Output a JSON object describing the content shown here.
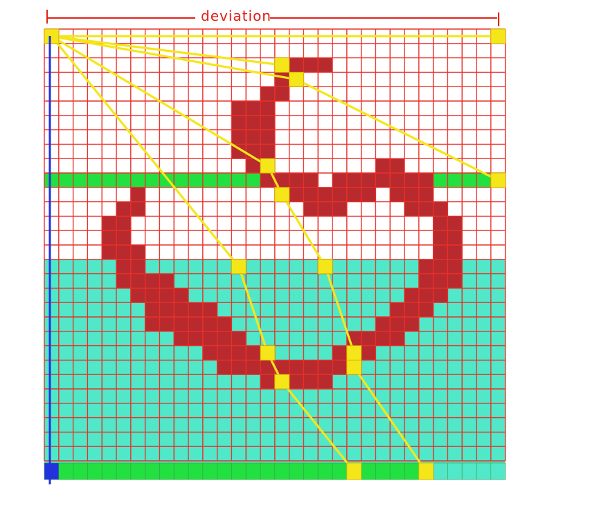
{
  "title": "deviation",
  "colors": {
    "background": "#ffffff",
    "grid_line": "#e8312a",
    "shape_fill": "#b82a2e",
    "lower_region": "#50e8c8",
    "green_band": "#22e040",
    "bottom_bar": "#22e040",
    "path": "#f5e61a",
    "origin_cell": "#f5e61a",
    "vertical_line": "#2233dd",
    "corner_cell": "#2233dd",
    "annotation": "#e0201a"
  },
  "grid": {
    "cols": 32,
    "rows": 30
  },
  "lower_region_start_row": 16,
  "green_band_row": 10,
  "green_band_gaps": [
    15,
    16,
    17,
    19,
    20,
    21,
    22,
    23,
    24,
    25,
    26
  ],
  "shape_cells": [
    [
      2,
      17
    ],
    [
      2,
      18
    ],
    [
      2,
      19
    ],
    [
      3,
      16
    ],
    [
      3,
      17
    ],
    [
      4,
      15
    ],
    [
      4,
      16
    ],
    [
      5,
      13
    ],
    [
      5,
      14
    ],
    [
      5,
      15
    ],
    [
      6,
      13
    ],
    [
      6,
      14
    ],
    [
      6,
      15
    ],
    [
      7,
      13
    ],
    [
      7,
      14
    ],
    [
      7,
      15
    ],
    [
      8,
      13
    ],
    [
      8,
      14
    ],
    [
      8,
      15
    ],
    [
      9,
      14
    ],
    [
      9,
      15
    ],
    [
      10,
      15
    ],
    [
      10,
      16
    ],
    [
      10,
      17
    ],
    [
      10,
      18
    ],
    [
      10,
      20
    ],
    [
      10,
      21
    ],
    [
      10,
      22
    ],
    [
      10,
      23
    ],
    [
      10,
      24
    ],
    [
      10,
      25
    ],
    [
      10,
      26
    ],
    [
      9,
      23
    ],
    [
      9,
      24
    ],
    [
      11,
      6
    ],
    [
      11,
      17
    ],
    [
      11,
      18
    ],
    [
      11,
      19
    ],
    [
      11,
      20
    ],
    [
      11,
      21
    ],
    [
      11,
      22
    ],
    [
      11,
      24
    ],
    [
      11,
      25
    ],
    [
      11,
      26
    ],
    [
      12,
      5
    ],
    [
      12,
      6
    ],
    [
      12,
      18
    ],
    [
      12,
      19
    ],
    [
      12,
      20
    ],
    [
      12,
      25
    ],
    [
      12,
      26
    ],
    [
      12,
      27
    ],
    [
      13,
      4
    ],
    [
      13,
      5
    ],
    [
      13,
      27
    ],
    [
      13,
      28
    ],
    [
      14,
      4
    ],
    [
      14,
      5
    ],
    [
      14,
      27
    ],
    [
      14,
      28
    ],
    [
      15,
      4
    ],
    [
      15,
      5
    ],
    [
      15,
      6
    ],
    [
      15,
      27
    ],
    [
      15,
      28
    ],
    [
      16,
      5
    ],
    [
      16,
      6
    ],
    [
      16,
      26
    ],
    [
      16,
      27
    ],
    [
      16,
      28
    ],
    [
      17,
      5
    ],
    [
      17,
      6
    ],
    [
      17,
      7
    ],
    [
      17,
      8
    ],
    [
      17,
      26
    ],
    [
      17,
      27
    ],
    [
      17,
      28
    ],
    [
      18,
      6
    ],
    [
      18,
      7
    ],
    [
      18,
      8
    ],
    [
      18,
      9
    ],
    [
      18,
      25
    ],
    [
      18,
      26
    ],
    [
      18,
      27
    ],
    [
      19,
      7
    ],
    [
      19,
      8
    ],
    [
      19,
      9
    ],
    [
      19,
      10
    ],
    [
      19,
      11
    ],
    [
      19,
      24
    ],
    [
      19,
      25
    ],
    [
      19,
      26
    ],
    [
      20,
      7
    ],
    [
      20,
      8
    ],
    [
      20,
      9
    ],
    [
      20,
      10
    ],
    [
      20,
      11
    ],
    [
      20,
      12
    ],
    [
      20,
      23
    ],
    [
      20,
      24
    ],
    [
      20,
      25
    ],
    [
      21,
      9
    ],
    [
      21,
      10
    ],
    [
      21,
      11
    ],
    [
      21,
      12
    ],
    [
      21,
      13
    ],
    [
      21,
      21
    ],
    [
      21,
      22
    ],
    [
      21,
      23
    ],
    [
      21,
      24
    ],
    [
      22,
      11
    ],
    [
      22,
      12
    ],
    [
      22,
      13
    ],
    [
      22,
      14
    ],
    [
      22,
      20
    ],
    [
      22,
      21
    ],
    [
      22,
      22
    ],
    [
      23,
      12
    ],
    [
      23,
      13
    ],
    [
      23,
      14
    ],
    [
      23,
      15
    ],
    [
      23,
      16
    ],
    [
      23,
      17
    ],
    [
      23,
      18
    ],
    [
      23,
      19
    ],
    [
      23,
      20
    ],
    [
      23,
      21
    ],
    [
      24,
      15
    ],
    [
      24,
      16
    ],
    [
      24,
      17
    ],
    [
      24,
      18
    ],
    [
      24,
      19
    ]
  ],
  "path_nodes": [
    [
      0,
      0
    ],
    [
      0,
      31
    ],
    [
      2,
      16
    ],
    [
      3,
      17
    ],
    [
      10,
      31
    ],
    [
      9,
      15
    ],
    [
      11,
      16
    ],
    [
      16,
      13
    ],
    [
      16,
      19
    ],
    [
      22,
      15
    ],
    [
      22,
      21
    ],
    [
      23,
      21
    ],
    [
      24,
      16
    ],
    [
      31,
      21
    ],
    [
      31,
      26
    ]
  ],
  "path_edges": [
    [
      0,
      1
    ],
    [
      0,
      2
    ],
    [
      0,
      3
    ],
    [
      3,
      4
    ],
    [
      0,
      5
    ],
    [
      5,
      6
    ],
    [
      6,
      8
    ],
    [
      8,
      10
    ],
    [
      10,
      11
    ],
    [
      11,
      14
    ],
    [
      0,
      7
    ],
    [
      7,
      9
    ],
    [
      9,
      12
    ],
    [
      12,
      13
    ]
  ],
  "bottom_bar_cells": 32
}
